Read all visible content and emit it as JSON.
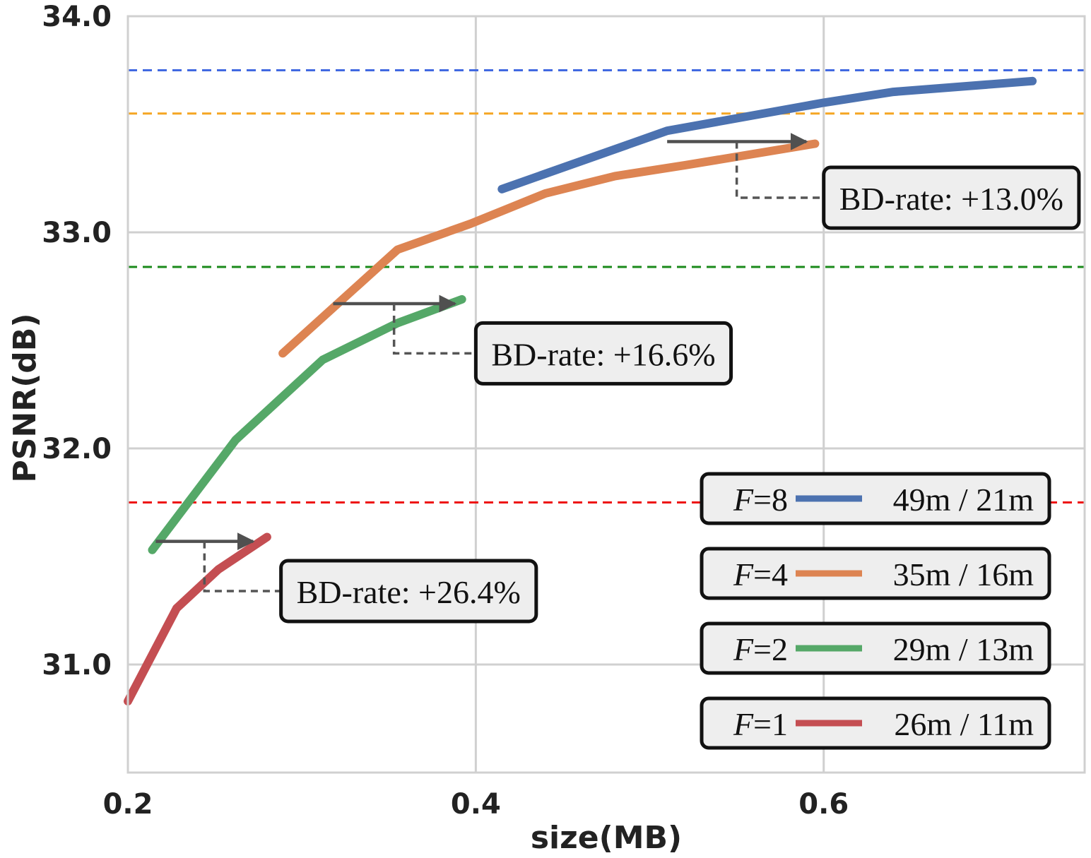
{
  "chart_data": {
    "type": "line",
    "xlabel": "size(MB)",
    "ylabel": "PSNR(dB)",
    "xlim": [
      0.2,
      0.75
    ],
    "ylim": [
      30.5,
      34.0
    ],
    "x_ticks": [
      0.2,
      0.4,
      0.6
    ],
    "x_tick_labels": [
      "0.2",
      "0.4",
      "0.6"
    ],
    "y_ticks": [
      31.0,
      32.0,
      33.0,
      34.0
    ],
    "y_tick_labels": [
      "31.0",
      "32.0",
      "33.0",
      "34.0"
    ],
    "grid": true,
    "legend_position": "bottom-right",
    "series": [
      {
        "name": "F=8",
        "f_symbol": "F",
        "f_value": "=8",
        "stats": "49m / 21m",
        "color": "#4c72b0",
        "x": [
          0.415,
          0.51,
          0.6,
          0.64,
          0.72
        ],
        "y": [
          33.2,
          33.47,
          33.6,
          33.65,
          33.7
        ],
        "reference_psnr": 33.75,
        "reference_color": "#4169e1"
      },
      {
        "name": "F=4",
        "f_symbol": "F",
        "f_value": "=4",
        "stats": "35m / 16m",
        "color": "#dd8452",
        "x": [
          0.289,
          0.355,
          0.397,
          0.44,
          0.48,
          0.52,
          0.595
        ],
        "y": [
          32.44,
          32.92,
          33.04,
          33.18,
          33.26,
          33.31,
          33.41
        ],
        "reference_psnr": 33.55,
        "reference_color": "#f5a623"
      },
      {
        "name": "F=2",
        "f_symbol": "F",
        "f_value": "=2",
        "stats": "29m / 13m",
        "color": "#55a868",
        "x": [
          0.214,
          0.262,
          0.312,
          0.355,
          0.392
        ],
        "y": [
          31.53,
          32.04,
          32.41,
          32.58,
          32.69
        ],
        "reference_psnr": 32.84,
        "reference_color": "#1a8a1a"
      },
      {
        "name": "F=1",
        "f_symbol": "F",
        "f_value": "=1",
        "stats": "26m / 11m",
        "color": "#c44e52",
        "x": [
          0.2,
          0.228,
          0.252,
          0.28
        ],
        "y": [
          30.83,
          31.26,
          31.44,
          31.59
        ],
        "reference_psnr": 31.75,
        "reference_color": "#ee1111"
      }
    ],
    "annotations": [
      {
        "text": "BD-rate: +13.0%",
        "arrow_from": [
          0.51,
          33.42
        ],
        "arrow_to": [
          0.59,
          33.42
        ],
        "box_anchor": [
          0.6,
          33.16
        ]
      },
      {
        "text": "BD-rate: +16.6%",
        "arrow_from": [
          0.318,
          32.67
        ],
        "arrow_to": [
          0.388,
          32.67
        ],
        "box_anchor": [
          0.4,
          32.44
        ]
      },
      {
        "text": "BD-rate: +26.4%",
        "arrow_from": [
          0.216,
          31.57
        ],
        "arrow_to": [
          0.272,
          31.57
        ],
        "box_anchor": [
          0.288,
          31.34
        ]
      }
    ]
  }
}
